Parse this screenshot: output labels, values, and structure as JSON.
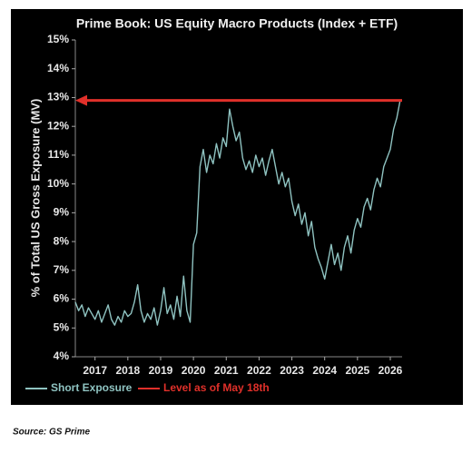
{
  "chart_data": {
    "type": "line",
    "title": "Prime Book: US Equity Macro Products (Index + ETF)",
    "y_label": "% of Total US Gross Exposure (MV)",
    "source": "Source: GS Prime",
    "x": [
      2016.4,
      2016.5,
      2016.6,
      2016.7,
      2016.8,
      2016.9,
      2017.0,
      2017.1,
      2017.2,
      2017.3,
      2017.4,
      2017.5,
      2017.6,
      2017.7,
      2017.8,
      2017.9,
      2018.0,
      2018.1,
      2018.2,
      2018.3,
      2018.4,
      2018.5,
      2018.6,
      2018.7,
      2018.8,
      2018.9,
      2019.0,
      2019.1,
      2019.2,
      2019.3,
      2019.4,
      2019.5,
      2019.6,
      2019.7,
      2019.8,
      2019.9,
      2020.0,
      2020.1,
      2020.2,
      2020.3,
      2020.4,
      2020.5,
      2020.6,
      2020.7,
      2020.8,
      2020.9,
      2021.0,
      2021.1,
      2021.2,
      2021.3,
      2021.4,
      2021.5,
      2021.6,
      2021.7,
      2021.8,
      2021.9,
      2022.0,
      2022.1,
      2022.2,
      2022.3,
      2022.4,
      2022.5,
      2022.6,
      2022.7,
      2022.8,
      2022.9,
      2023.0,
      2023.1,
      2023.2,
      2023.3,
      2023.4,
      2023.5,
      2023.6,
      2023.7,
      2023.8,
      2023.9,
      2024.0,
      2024.1,
      2024.2,
      2024.3,
      2024.4,
      2024.5,
      2024.6,
      2024.7,
      2024.8,
      2024.9,
      2025.0,
      2025.1,
      2025.2,
      2025.3,
      2025.4,
      2025.5,
      2025.6,
      2025.7,
      2025.8,
      2025.9,
      2026.0,
      2026.1,
      2026.2,
      2026.3
    ],
    "series": [
      {
        "name": "Short Exposure",
        "color": "#8fc3c1",
        "values": [
          5.9,
          5.6,
          5.8,
          5.4,
          5.7,
          5.5,
          5.3,
          5.6,
          5.2,
          5.5,
          5.8,
          5.3,
          5.1,
          5.4,
          5.2,
          5.6,
          5.4,
          5.5,
          5.9,
          6.5,
          5.6,
          5.2,
          5.5,
          5.3,
          5.7,
          5.1,
          5.6,
          6.4,
          5.5,
          5.8,
          5.3,
          6.1,
          5.4,
          6.8,
          5.6,
          5.2,
          7.9,
          8.3,
          10.6,
          11.2,
          10.4,
          11.0,
          10.7,
          11.4,
          10.9,
          11.6,
          11.3,
          12.6,
          12.0,
          11.5,
          11.8,
          10.9,
          10.5,
          10.8,
          10.4,
          11.0,
          10.6,
          10.9,
          10.3,
          10.8,
          11.2,
          10.6,
          10.0,
          10.4,
          9.9,
          10.2,
          9.4,
          8.9,
          9.3,
          8.6,
          9.0,
          8.2,
          8.7,
          7.8,
          7.4,
          7.1,
          6.7,
          7.3,
          7.9,
          7.2,
          7.6,
          7.0,
          7.8,
          8.2,
          7.6,
          8.4,
          8.8,
          8.5,
          9.2,
          9.5,
          9.1,
          9.8,
          10.2,
          9.9,
          10.6,
          10.9,
          11.2,
          11.9,
          12.3,
          12.9
        ]
      }
    ],
    "reference_line": {
      "name": "Level as of May 18th",
      "value": 12.9,
      "color": "#e0302a"
    },
    "xlim": [
      2016.4,
      2026.36
    ],
    "xticks": [
      2017,
      2018,
      2019,
      2020,
      2021,
      2022,
      2023,
      2024,
      2025,
      2026
    ],
    "ylim": [
      4,
      15
    ],
    "yticks": [
      {
        "value": 4,
        "label": "4%"
      },
      {
        "value": 5,
        "label": "5%"
      },
      {
        "value": 6,
        "label": "6%"
      },
      {
        "value": 7,
        "label": "7%"
      },
      {
        "value": 8,
        "label": "8%"
      },
      {
        "value": 9,
        "label": "9%"
      },
      {
        "value": 10,
        "label": "10%"
      },
      {
        "value": 11,
        "label": "11%"
      },
      {
        "value": 12,
        "label": "12%"
      },
      {
        "value": 13,
        "label": "13%"
      },
      {
        "value": 14,
        "label": "14%"
      },
      {
        "value": 15,
        "label": "15%"
      }
    ]
  }
}
